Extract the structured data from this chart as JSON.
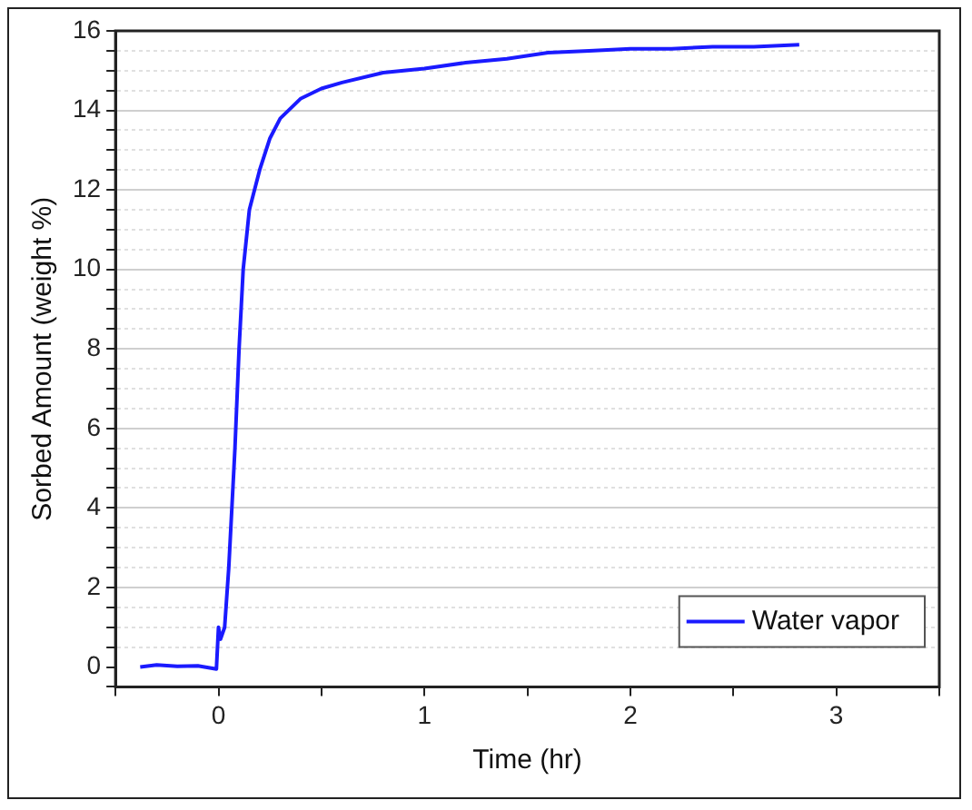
{
  "chart_data": {
    "type": "line",
    "xlabel": "Time (hr)",
    "ylabel": "Sorbed Amount (weight %)",
    "xlim": [
      -0.5,
      3.5
    ],
    "xticks": [
      {
        "value": -0.5,
        "label": null
      },
      0,
      {
        "value": 0.5,
        "label": null
      },
      1,
      {
        "value": 1.5,
        "label": null
      },
      2,
      {
        "value": 2.5,
        "label": null
      },
      3,
      {
        "value": 3.5,
        "label": null
      }
    ],
    "ylim": [
      -0.5,
      16
    ],
    "yticks": [
      {
        "value": -0.5,
        "label": null
      },
      0,
      {
        "value": 0.5,
        "label": null
      },
      {
        "value": 1,
        "label": null
      },
      {
        "value": 1.5,
        "label": null
      },
      2,
      {
        "value": 2.5,
        "label": null
      },
      {
        "value": 3,
        "label": null
      },
      {
        "value": 3.5,
        "label": null
      },
      4,
      {
        "value": 4.5,
        "label": null
      },
      {
        "value": 5,
        "label": null
      },
      {
        "value": 5.5,
        "label": null
      },
      6,
      {
        "value": 6.5,
        "label": null
      },
      {
        "value": 7,
        "label": null
      },
      {
        "value": 7.5,
        "label": null
      },
      8,
      {
        "value": 8.5,
        "label": null
      },
      {
        "value": 9,
        "label": null
      },
      {
        "value": 9.5,
        "label": null
      },
      10,
      {
        "value": 10.5,
        "label": null
      },
      {
        "value": 11,
        "label": null
      },
      {
        "value": 11.5,
        "label": null
      },
      12,
      {
        "value": 12.5,
        "label": null
      },
      {
        "value": 13,
        "label": null
      },
      {
        "value": 13.5,
        "label": null
      },
      14,
      {
        "value": 14.5,
        "label": null
      },
      {
        "value": 15,
        "label": null
      },
      {
        "value": 15.5,
        "label": null
      },
      16
    ],
    "grid": "y",
    "legend": "bottom right",
    "marker": "none",
    "line_style": "solid",
    "series": [
      {
        "name": "Water vapor",
        "color": "#1a1aff",
        "x": [
          -0.38,
          -0.3,
          -0.2,
          -0.1,
          -0.01,
          0.0,
          0.01,
          0.03,
          0.05,
          0.08,
          0.1,
          0.12,
          0.15,
          0.2,
          0.25,
          0.3,
          0.4,
          0.5,
          0.6,
          0.8,
          1.0,
          1.2,
          1.4,
          1.6,
          1.8,
          2.0,
          2.2,
          2.4,
          2.6,
          2.82
        ],
        "values": [
          0,
          0.05,
          0.02,
          0.03,
          -0.05,
          1.0,
          0.7,
          1.0,
          2.5,
          5.5,
          8,
          10,
          11.5,
          12.5,
          13.3,
          13.8,
          14.3,
          14.55,
          14.7,
          14.95,
          15.05,
          15.2,
          15.3,
          15.45,
          15.5,
          15.55,
          15.55,
          15.6,
          15.6,
          15.65
        ]
      }
    ]
  }
}
